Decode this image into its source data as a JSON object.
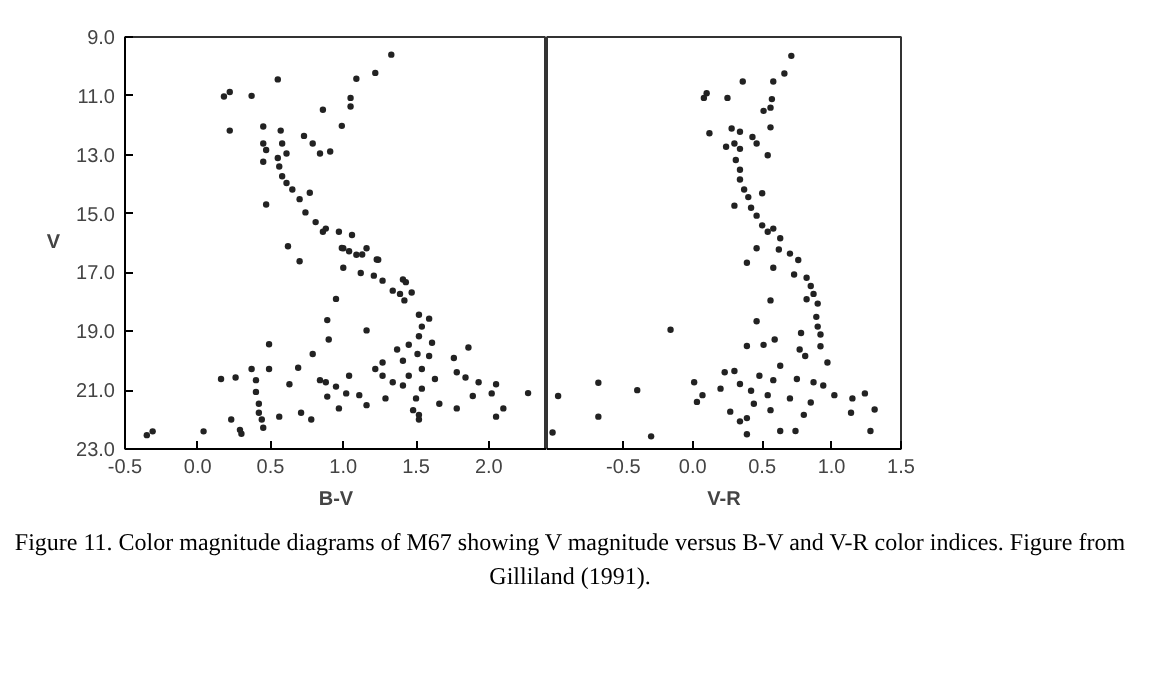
{
  "chart_data": [
    {
      "type": "scatter",
      "xlabel": "B-V",
      "ylabel": "V",
      "marker": "circle",
      "grid": false,
      "xlim": [
        -0.5,
        2.4
      ],
      "ylim": [
        23,
        9
      ],
      "xticks": [
        {
          "value": -0.5,
          "label": "-0.5"
        },
        {
          "value": 0,
          "label": "0.0"
        },
        {
          "value": 0.5,
          "label": "0.5"
        },
        {
          "value": 1,
          "label": "1.0"
        },
        {
          "value": 1.5,
          "label": "1.5"
        },
        {
          "value": 2,
          "label": "2.0"
        }
      ],
      "yticks": [
        {
          "value": 9,
          "label": "9.0"
        },
        {
          "value": 11,
          "label": "11.0"
        },
        {
          "value": 13,
          "label": "13.0"
        },
        {
          "value": 15,
          "label": "15.0"
        },
        {
          "value": 17,
          "label": "17.0"
        },
        {
          "value": 19,
          "label": "19.0"
        },
        {
          "value": 21,
          "label": "21.0"
        },
        {
          "value": 23,
          "label": "23.0"
        }
      ],
      "series": [
        {
          "color": "#222222",
          "x": [
            0.18,
            0.22,
            0.37,
            0.22,
            0.55,
            1.33,
            1.22,
            1.09,
            1.05,
            1.05,
            0.86,
            0.99,
            0.45,
            0.57,
            0.45,
            0.47,
            0.58,
            0.61,
            0.55,
            0.45,
            0.56,
            0.58,
            0.61,
            0.65,
            0.7,
            0.74,
            0.81,
            0.88,
            0.97,
            1.06,
            0.86,
            0.77,
            0.73,
            0.79,
            0.84,
            0.91,
            0.47,
            0.62,
            1.0,
            1.09,
            1.16,
            1.23,
            0.7,
            1.0,
            1.12,
            1.41,
            0.99,
            1.04,
            1.13,
            1.24,
            1.21,
            1.27,
            1.34,
            1.39,
            1.43,
            1.47,
            1.42,
            0.95,
            1.52,
            1.59,
            1.54,
            1.16,
            0.89,
            0.9,
            1.52,
            1.61,
            1.45,
            1.37,
            0.49,
            1.86,
            0.79,
            1.51,
            1.59,
            1.27,
            1.41,
            1.76,
            1.22,
            1.54,
            1.78,
            0.37,
            0.49,
            0.69,
            0.16,
            0.26,
            0.4,
            0.84,
            0.88,
            1.04,
            1.27,
            1.34,
            1.45,
            1.63,
            1.84,
            1.93,
            0.63,
            0.95,
            1.02,
            1.11,
            1.41,
            1.54,
            1.5,
            0.4,
            0.42,
            0.89,
            1.29,
            1.89,
            2.02,
            2.05,
            0.97,
            1.16,
            1.66,
            1.78,
            1.52,
            2.05,
            2.1,
            0.42,
            0.56,
            1.48,
            0.23,
            0.44,
            1.52,
            0.45,
            0.29,
            0.3,
            0.04,
            -0.31,
            -0.35,
            0.71,
            0.78,
            2.27
          ],
          "values": [
            11.02,
            10.87,
            11.0,
            12.18,
            10.44,
            9.6,
            10.22,
            10.42,
            11.07,
            11.36,
            11.47,
            12.02,
            12.04,
            12.18,
            12.62,
            12.84,
            12.62,
            12.96,
            13.11,
            13.24,
            13.4,
            13.73,
            13.96,
            14.18,
            14.51,
            14.96,
            15.29,
            15.51,
            15.62,
            15.73,
            15.62,
            14.29,
            12.36,
            12.62,
            12.96,
            12.89,
            14.69,
            16.11,
            16.18,
            16.4,
            16.18,
            16.56,
            16.62,
            16.84,
            17.02,
            17.24,
            16.17,
            16.28,
            16.39,
            16.57,
            17.11,
            17.28,
            17.62,
            17.73,
            17.33,
            17.68,
            17.95,
            17.9,
            18.44,
            18.57,
            18.84,
            18.97,
            18.62,
            19.28,
            19.17,
            19.39,
            19.46,
            19.62,
            19.44,
            19.55,
            19.77,
            19.77,
            19.84,
            20.06,
            20.0,
            19.91,
            20.28,
            20.28,
            20.39,
            20.28,
            20.28,
            20.24,
            20.62,
            20.57,
            20.66,
            20.66,
            20.73,
            20.51,
            20.51,
            20.73,
            20.51,
            20.62,
            20.57,
            20.73,
            20.8,
            20.88,
            21.11,
            21.17,
            20.84,
            20.95,
            21.28,
            21.06,
            21.46,
            21.22,
            21.28,
            21.2,
            21.11,
            20.8,
            21.62,
            21.51,
            21.46,
            21.62,
            21.84,
            21.9,
            21.62,
            21.77,
            21.9,
            21.68,
            22.0,
            22.0,
            22.0,
            22.28,
            22.35,
            22.48,
            22.4,
            22.4,
            22.53,
            21.77,
            22.0,
            21.1
          ]
        }
      ],
      "annotations": [
        "Figure 11.  Color magnitude diagrams of M67 showing V magnitude versus B-V and V-R color indices. Figure from Gilliland (1991)."
      ]
    },
    {
      "type": "scatter",
      "xlabel": "V-R",
      "marker": "circle",
      "grid": false,
      "tick_labels": "x",
      "xlim": [
        -1.05,
        1.5
      ],
      "ylim": [
        23,
        9
      ],
      "xticks": [
        {
          "value": -0.5,
          "label": "-0.5"
        },
        {
          "value": 0,
          "label": "0.0"
        },
        {
          "value": 0.5,
          "label": "0.5"
        },
        {
          "value": 1,
          "label": "1.0"
        },
        {
          "value": 1.5,
          "label": "1.5"
        }
      ],
      "series": [
        {
          "color": "#222222",
          "x": [
            0.71,
            0.66,
            0.58,
            0.36,
            0.1,
            0.08,
            0.25,
            0.57,
            0.56,
            0.51,
            0.56,
            0.12,
            0.28,
            0.34,
            0.43,
            0.46,
            0.54,
            0.24,
            0.3,
            0.34,
            0.31,
            0.34,
            0.34,
            0.37,
            0.4,
            0.3,
            0.42,
            0.5,
            0.46,
            0.5,
            0.54,
            0.58,
            0.63,
            0.46,
            0.62,
            0.7,
            0.76,
            0.39,
            0.58,
            0.73,
            0.82,
            0.85,
            0.87,
            0.82,
            0.9,
            0.56,
            0.89,
            0.9,
            0.46,
            -0.16,
            0.78,
            0.92,
            0.59,
            0.39,
            0.51,
            0.77,
            0.92,
            0.81,
            0.97,
            0.63,
            0.3,
            0.23,
            0.48,
            0.58,
            0.75,
            0.87,
            0.94,
            0.2,
            0.34,
            0.42,
            0.54,
            0.7,
            1.02,
            0.01,
            0.07,
            0.03,
            0.44,
            1.15,
            1.24,
            0.85,
            0.27,
            0.56,
            0.8,
            1.14,
            1.31,
            0.34,
            0.39,
            0.63,
            0.74,
            0.39,
            1.28,
            -0.4,
            -0.68,
            -0.68,
            -0.97,
            -1.01,
            -0.3
          ],
          "values": [
            9.64,
            10.24,
            10.51,
            10.51,
            10.91,
            11.07,
            11.07,
            11.11,
            11.4,
            11.51,
            12.07,
            12.27,
            12.11,
            12.22,
            12.4,
            12.62,
            13.02,
            12.73,
            12.62,
            12.8,
            13.18,
            13.51,
            13.84,
            14.18,
            14.44,
            14.73,
            14.8,
            14.31,
            15.07,
            15.4,
            15.62,
            15.51,
            15.84,
            16.18,
            16.22,
            16.36,
            16.58,
            16.67,
            16.84,
            17.07,
            17.18,
            17.46,
            17.73,
            17.91,
            18.06,
            17.95,
            18.51,
            18.84,
            18.66,
            18.95,
            19.06,
            19.11,
            19.28,
            19.5,
            19.46,
            19.62,
            19.51,
            19.84,
            20.06,
            20.17,
            20.35,
            20.39,
            20.51,
            20.66,
            20.62,
            20.73,
            20.84,
            20.95,
            20.79,
            21.02,
            21.17,
            21.28,
            21.17,
            20.73,
            21.17,
            21.4,
            21.46,
            21.28,
            21.11,
            21.42,
            21.73,
            21.68,
            21.84,
            21.77,
            21.66,
            22.06,
            21.95,
            22.39,
            22.39,
            22.5,
            22.39,
            21.0,
            20.75,
            21.9,
            21.2,
            22.44,
            22.57
          ]
        }
      ]
    }
  ]
}
